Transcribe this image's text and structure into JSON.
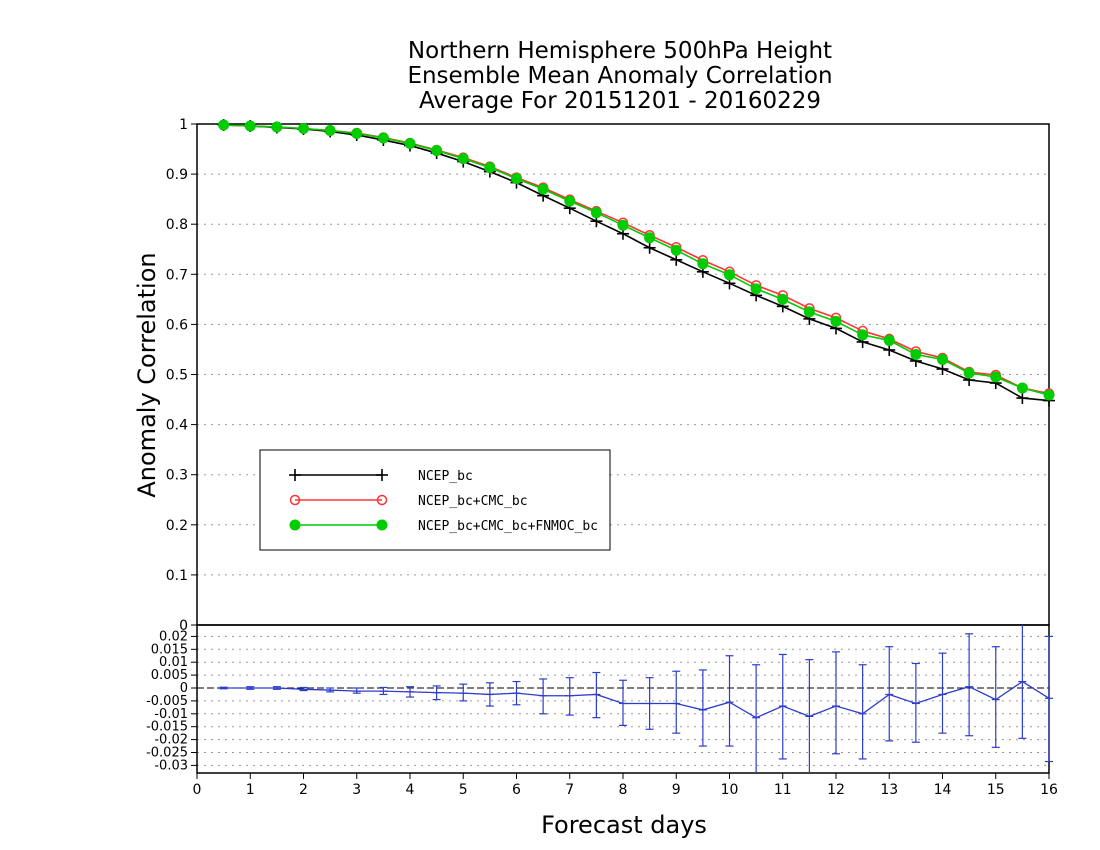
{
  "chart_data": {
    "type": "line",
    "title": [
      "Northern Hemisphere 500hPa Height",
      "Ensemble Mean Anomaly Correlation",
      "Average For 20151201 - 20160229"
    ],
    "xlabel": "Forecast days",
    "ylabel": "Anomaly Correlation",
    "xlim": [
      0,
      16
    ],
    "ylim": [
      0,
      1
    ],
    "x_ticks": [
      "0",
      "1",
      "2",
      "3",
      "4",
      "5",
      "6",
      "7",
      "8",
      "9",
      "10",
      "11",
      "12",
      "13",
      "14",
      "15",
      "16"
    ],
    "y_ticks": [
      "0",
      "0.1",
      "0.2",
      "0.3",
      "0.4",
      "0.5",
      "0.6",
      "0.7",
      "0.8",
      "0.9",
      "1"
    ],
    "grid": true,
    "legend_position": "middle-left",
    "x": [
      0.5,
      1,
      1.5,
      2,
      2.5,
      3,
      3.5,
      4,
      4.5,
      5,
      5.5,
      6,
      6.5,
      7,
      7.5,
      8,
      8.5,
      9,
      9.5,
      10,
      10.5,
      11,
      11.5,
      12,
      12.5,
      13,
      13.5,
      14,
      14.5,
      15,
      15.5,
      16
    ],
    "series": [
      {
        "name": "NCEP_bc",
        "color": "#000000",
        "marker": "plus",
        "values": [
          0.998,
          0.996,
          0.993,
          0.99,
          0.985,
          0.978,
          0.968,
          0.957,
          0.942,
          0.925,
          0.905,
          0.883,
          0.857,
          0.832,
          0.806,
          0.781,
          0.753,
          0.729,
          0.705,
          0.682,
          0.658,
          0.636,
          0.611,
          0.592,
          0.565,
          0.549,
          0.527,
          0.511,
          0.489,
          0.483,
          0.453,
          0.448
        ]
      },
      {
        "name": "NCEP_bc+CMC_bc",
        "color": "#ff3333",
        "marker": "open-circle",
        "values": [
          0.998,
          0.996,
          0.994,
          0.991,
          0.987,
          0.982,
          0.973,
          0.962,
          0.948,
          0.933,
          0.915,
          0.893,
          0.873,
          0.849,
          0.826,
          0.803,
          0.778,
          0.754,
          0.728,
          0.705,
          0.678,
          0.658,
          0.632,
          0.613,
          0.587,
          0.571,
          0.546,
          0.533,
          0.505,
          0.499,
          0.473,
          0.462
        ]
      },
      {
        "name": "NCEP_bc+CMC_bc+FNMOC_bc",
        "color": "#00cc00",
        "marker": "filled-circle",
        "values": [
          0.998,
          0.996,
          0.994,
          0.991,
          0.987,
          0.981,
          0.972,
          0.961,
          0.947,
          0.931,
          0.913,
          0.891,
          0.87,
          0.846,
          0.823,
          0.798,
          0.773,
          0.748,
          0.721,
          0.699,
          0.671,
          0.65,
          0.625,
          0.606,
          0.579,
          0.568,
          0.54,
          0.53,
          0.503,
          0.495,
          0.473,
          0.459
        ]
      }
    ],
    "difference_panel": {
      "ylim": [
        -0.035,
        0.025
      ],
      "y_ticks": [
        "0.02",
        "0.015",
        "0.01",
        "0.005",
        "0",
        "-0.005",
        "-0.01",
        "-0.015",
        "-0.02",
        "-0.025",
        "-0.03"
      ],
      "color": "#2e3ccc",
      "mean": [
        0,
        0,
        0,
        -0.0005,
        -0.0008,
        -0.0012,
        -0.0012,
        -0.0015,
        -0.0018,
        -0.002,
        -0.0025,
        -0.002,
        -0.003,
        -0.003,
        -0.0025,
        -0.006,
        -0.006,
        -0.006,
        -0.0085,
        -0.0055,
        -0.0115,
        -0.007,
        -0.011,
        -0.007,
        -0.01,
        -0.0025,
        -0.006,
        -0.0025,
        0.0005,
        -0.0045,
        0.0025,
        -0.004
      ],
      "error_low": [
        -0.0003,
        -0.0005,
        -0.0005,
        -0.001,
        -0.0015,
        -0.002,
        -0.0025,
        -0.0035,
        -0.0045,
        -0.005,
        -0.007,
        -0.0065,
        -0.01,
        -0.0105,
        -0.0115,
        -0.0145,
        -0.016,
        -0.0175,
        -0.0225,
        -0.0225,
        -0.0335,
        -0.0275,
        -0.036,
        -0.0255,
        -0.0275,
        -0.0205,
        -0.021,
        -0.0175,
        -0.0185,
        -0.023,
        -0.0195,
        -0.0285
      ],
      "error_high": [
        0.0003,
        0.0005,
        0.0005,
        0.0002,
        0.0,
        0.0,
        0.0002,
        0.0005,
        0.0008,
        0.0015,
        0.002,
        0.0025,
        0.0035,
        0.004,
        0.006,
        0.003,
        0.004,
        0.0065,
        0.007,
        0.0125,
        0.009,
        0.013,
        0.011,
        0.014,
        0.009,
        0.016,
        0.0095,
        0.0135,
        0.021,
        0.016,
        0.0255,
        0.02
      ]
    }
  }
}
